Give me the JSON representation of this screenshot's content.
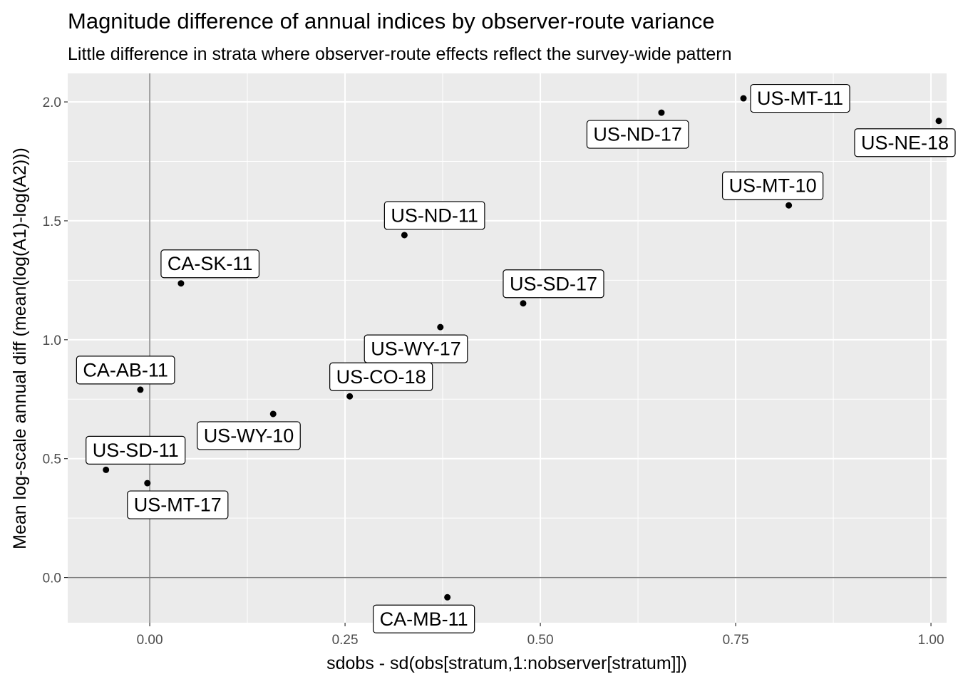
{
  "chart_data": {
    "type": "scatter",
    "title": "Magnitude difference of annual indices by observer-route variance",
    "subtitle": "Little difference in strata where observer-route effects reflect the survey-wide pattern",
    "xlabel": "sdobs - sd(obs[stratum,1:nobserver[stratum]])",
    "ylabel": "Mean log-scale annual diff (mean(log(A1)-log(A2)))",
    "xlim": [
      -0.105,
      1.02
    ],
    "ylim": [
      -0.19,
      2.12
    ],
    "x_ticks": [
      0.0,
      0.25,
      0.5,
      0.75,
      1.0
    ],
    "x_tick_labels": [
      "0.00",
      "0.25",
      "0.50",
      "0.75",
      "1.00"
    ],
    "y_ticks": [
      0.0,
      0.5,
      1.0,
      1.5,
      2.0
    ],
    "y_tick_labels": [
      "0.0",
      "0.5",
      "1.0",
      "1.5",
      "2.0"
    ],
    "reference_lines": {
      "x": 0,
      "y": 0
    },
    "grid": true,
    "points": [
      {
        "label": "US-MT-11",
        "x": 0.76,
        "y": 2.015,
        "label_pos": "right"
      },
      {
        "label": "US-ND-17",
        "x": 0.655,
        "y": 1.955,
        "label_pos": "below-left"
      },
      {
        "label": "US-NE-18",
        "x": 1.01,
        "y": 1.92,
        "label_pos": "below-left"
      },
      {
        "label": "US-MT-10",
        "x": 0.818,
        "y": 1.565,
        "label_pos": "above-left"
      },
      {
        "label": "US-ND-11",
        "x": 0.326,
        "y": 1.44,
        "label_pos": "above-right"
      },
      {
        "label": "CA-SK-11",
        "x": 0.04,
        "y": 1.237,
        "label_pos": "above-right"
      },
      {
        "label": "US-SD-17",
        "x": 0.478,
        "y": 1.153,
        "label_pos": "above-right"
      },
      {
        "label": "US-WY-17",
        "x": 0.372,
        "y": 1.053,
        "label_pos": "below-left"
      },
      {
        "label": "CA-AB-11",
        "x": -0.012,
        "y": 0.79,
        "label_pos": "above-left"
      },
      {
        "label": "US-CO-18",
        "x": 0.256,
        "y": 0.762,
        "label_pos": "above-right"
      },
      {
        "label": "US-WY-10",
        "x": 0.158,
        "y": 0.688,
        "label_pos": "below-left"
      },
      {
        "label": "US-SD-11",
        "x": -0.056,
        "y": 0.453,
        "label_pos": "above-right"
      },
      {
        "label": "US-MT-17",
        "x": -0.003,
        "y": 0.397,
        "label_pos": "below-right"
      },
      {
        "label": "CA-MB-11",
        "x": 0.381,
        "y": -0.083,
        "label_pos": "below-left"
      }
    ]
  }
}
